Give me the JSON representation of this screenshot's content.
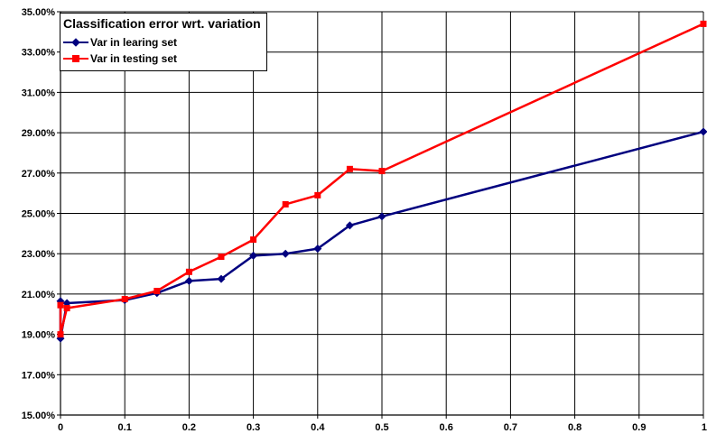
{
  "chart_data": {
    "type": "line",
    "legend_title": "Classification error wrt. variation",
    "legend_position": "top-left",
    "grid": true,
    "xlim": [
      0,
      1
    ],
    "ylim": [
      15,
      35
    ],
    "x_ticks": [
      "0",
      "0.1",
      "0.2",
      "0.3",
      "0.4",
      "0.5",
      "0.6",
      "0.7",
      "0.8",
      "0.9",
      "1"
    ],
    "y_ticks": [
      "15.00%",
      "17.00%",
      "19.00%",
      "21.00%",
      "23.00%",
      "25.00%",
      "27.00%",
      "29.00%",
      "31.00%",
      "33.00%",
      "35.00%"
    ],
    "series": [
      {
        "name": "Var in learing set",
        "color": "#00007f",
        "marker": "diamond",
        "points": [
          [
            0,
            20.65
          ],
          [
            0,
            18.8
          ],
          [
            0.01,
            20.55
          ],
          [
            0.1,
            20.7
          ],
          [
            0.15,
            21.05
          ],
          [
            0.2,
            21.65
          ],
          [
            0.25,
            21.75
          ],
          [
            0.3,
            22.9
          ],
          [
            0.35,
            23.0
          ],
          [
            0.4,
            23.25
          ],
          [
            0.45,
            24.4
          ],
          [
            0.5,
            24.85
          ],
          [
            1.0,
            29.05
          ]
        ]
      },
      {
        "name": "Var in testing set",
        "color": "#ff0000",
        "marker": "square",
        "points": [
          [
            0,
            20.45
          ],
          [
            0,
            19.0
          ],
          [
            0.01,
            20.3
          ],
          [
            0.1,
            20.75
          ],
          [
            0.15,
            21.15
          ],
          [
            0.2,
            22.1
          ],
          [
            0.25,
            22.85
          ],
          [
            0.3,
            23.7
          ],
          [
            0.35,
            25.45
          ],
          [
            0.4,
            25.9
          ],
          [
            0.45,
            27.2
          ],
          [
            0.5,
            27.1
          ],
          [
            1.0,
            34.4
          ]
        ]
      }
    ]
  }
}
